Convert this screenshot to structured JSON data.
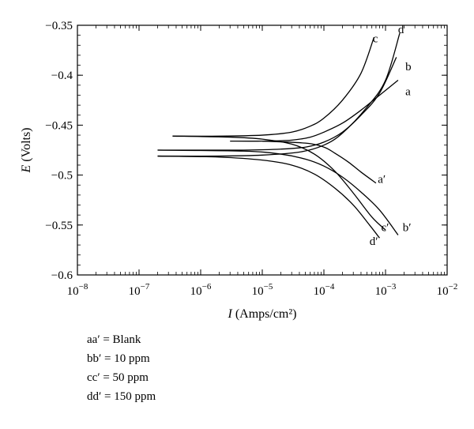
{
  "chart_data": {
    "type": "line",
    "title": "",
    "xlabel": "I (Amps/cm²)",
    "xlabel_var": "I",
    "xlabel_units": "(Amps/cm²)",
    "ylabel": "E (Volts)",
    "ylabel_var": "E",
    "ylabel_units": "(Volts)",
    "x_scale": "log",
    "xlim": [
      1e-08,
      0.01
    ],
    "ylim": [
      -0.6,
      -0.35
    ],
    "x_ticks": [
      {
        "value": 1e-08,
        "base": "10",
        "exp": "−8"
      },
      {
        "value": 1e-07,
        "base": "10",
        "exp": "−7"
      },
      {
        "value": 1e-06,
        "base": "10",
        "exp": "−6"
      },
      {
        "value": 1e-05,
        "base": "10",
        "exp": "−5"
      },
      {
        "value": 0.0001,
        "base": "10",
        "exp": "−4"
      },
      {
        "value": 0.001,
        "base": "10",
        "exp": "−3"
      },
      {
        "value": 0.01,
        "base": "10",
        "exp": "−2"
      }
    ],
    "y_ticks": [
      {
        "value": -0.35,
        "label": "−0.35"
      },
      {
        "value": -0.4,
        "label": "−0.4"
      },
      {
        "value": -0.45,
        "label": "−0.45"
      },
      {
        "value": -0.5,
        "label": "−0.5"
      },
      {
        "value": -0.55,
        "label": "−0.55"
      },
      {
        "value": -0.6,
        "label": "−0.6"
      }
    ],
    "grid": false,
    "series": [
      {
        "label": "a",
        "points": [
          [
            3e-06,
            -0.466
          ],
          [
            1e-05,
            -0.466
          ],
          [
            3e-05,
            -0.465
          ],
          [
            6e-05,
            -0.462
          ],
          [
            0.0001,
            -0.457
          ],
          [
            0.0002,
            -0.448
          ],
          [
            0.0004,
            -0.435
          ],
          [
            0.0008,
            -0.42
          ],
          [
            0.0016,
            -0.405
          ]
        ]
      },
      {
        "label": "a′",
        "points": [
          [
            1e-05,
            -0.466
          ],
          [
            5e-05,
            -0.468
          ],
          [
            0.0001,
            -0.472
          ],
          [
            0.00015,
            -0.478
          ],
          [
            0.00025,
            -0.487
          ],
          [
            0.0004,
            -0.497
          ],
          [
            0.0007,
            -0.508
          ]
        ]
      },
      {
        "label": "b",
        "points": [
          [
            2e-07,
            -0.475
          ],
          [
            1e-06,
            -0.475
          ],
          [
            5e-06,
            -0.475
          ],
          [
            2e-05,
            -0.474
          ],
          [
            5e-05,
            -0.472
          ],
          [
            0.0001,
            -0.467
          ],
          [
            0.0002,
            -0.457
          ],
          [
            0.0004,
            -0.44
          ],
          [
            0.0008,
            -0.418
          ],
          [
            0.0015,
            -0.382
          ]
        ]
      },
      {
        "label": "b′",
        "points": [
          [
            2e-07,
            -0.475
          ],
          [
            5e-06,
            -0.476
          ],
          [
            2e-05,
            -0.479
          ],
          [
            5e-05,
            -0.484
          ],
          [
            0.0001,
            -0.491
          ],
          [
            0.0002,
            -0.502
          ],
          [
            0.0004,
            -0.517
          ],
          [
            0.0008,
            -0.535
          ],
          [
            0.0016,
            -0.56
          ]
        ]
      },
      {
        "label": "c",
        "points": [
          [
            3.5e-07,
            -0.461
          ],
          [
            2e-06,
            -0.461
          ],
          [
            1e-05,
            -0.46
          ],
          [
            3e-05,
            -0.457
          ],
          [
            6e-05,
            -0.451
          ],
          [
            0.0001,
            -0.443
          ],
          [
            0.0002,
            -0.425
          ],
          [
            0.0004,
            -0.398
          ],
          [
            0.00065,
            -0.362
          ]
        ]
      },
      {
        "label": "c′",
        "points": [
          [
            3.5e-07,
            -0.461
          ],
          [
            3e-06,
            -0.462
          ],
          [
            1e-05,
            -0.464
          ],
          [
            3e-05,
            -0.469
          ],
          [
            7e-05,
            -0.479
          ],
          [
            0.00015,
            -0.496
          ],
          [
            0.0003,
            -0.518
          ],
          [
            0.0006,
            -0.542
          ],
          [
            0.001,
            -0.555
          ]
        ]
      },
      {
        "label": "d",
        "points": [
          [
            2e-07,
            -0.481
          ],
          [
            2e-06,
            -0.481
          ],
          [
            1e-05,
            -0.48
          ],
          [
            4e-05,
            -0.477
          ],
          [
            0.0001,
            -0.47
          ],
          [
            0.0002,
            -0.458
          ],
          [
            0.0005,
            -0.432
          ],
          [
            0.001,
            -0.405
          ],
          [
            0.0017,
            -0.358
          ]
        ]
      },
      {
        "label": "d′",
        "points": [
          [
            2e-07,
            -0.481
          ],
          [
            2e-06,
            -0.482
          ],
          [
            1e-05,
            -0.485
          ],
          [
            3e-05,
            -0.49
          ],
          [
            7e-05,
            -0.499
          ],
          [
            0.00015,
            -0.513
          ],
          [
            0.0003,
            -0.53
          ],
          [
            0.00055,
            -0.55
          ],
          [
            0.0008,
            -0.563
          ]
        ]
      }
    ],
    "curve_labels": [
      {
        "text": "c",
        "x": 0.00062,
        "y": -0.363
      },
      {
        "text": "d",
        "x": 0.0016,
        "y": -0.354
      },
      {
        "text": "b",
        "x": 0.0021,
        "y": -0.391
      },
      {
        "text": "a",
        "x": 0.0021,
        "y": -0.416
      },
      {
        "text": "a′",
        "x": 0.00075,
        "y": -0.504
      },
      {
        "text": "b′",
        "x": 0.0019,
        "y": -0.552
      },
      {
        "text": "c′",
        "x": 0.00085,
        "y": -0.552
      },
      {
        "text": "d′",
        "x": 0.00055,
        "y": -0.566
      }
    ],
    "legend": [
      "aa′ = Blank",
      "bb′ = 10 ppm",
      "cc′ = 50 ppm",
      "dd′ = 150 ppm"
    ]
  }
}
